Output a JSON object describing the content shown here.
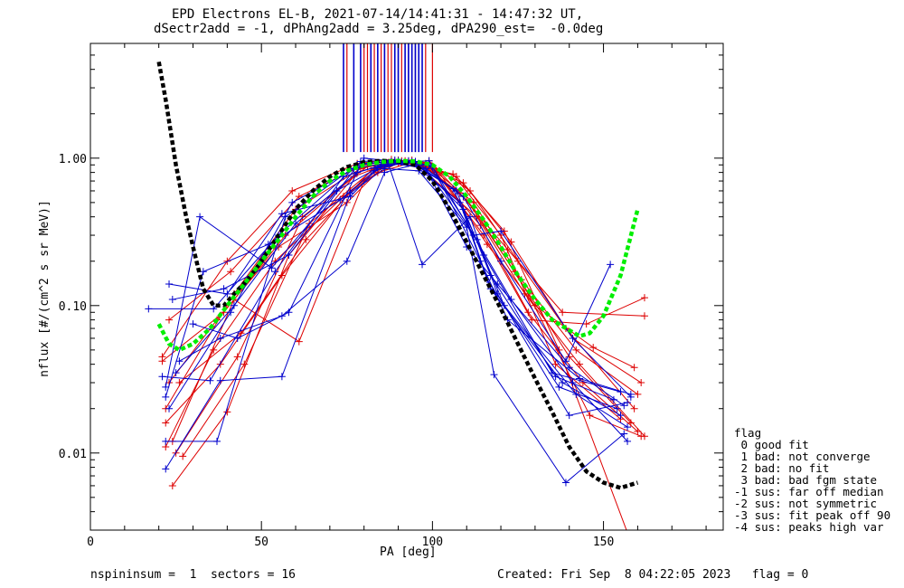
{
  "chart_data": {
    "type": "line",
    "title": "EPD Electrons EL-B, 2021-07-14/14:41:31 - 14:47:32 UT,",
    "subtitle": "dSectr2add = -1, dPhAng2add = 3.25deg, dPA290_est=  -0.0deg",
    "xlabel": "PA [deg]",
    "ylabel": "nflux [#/(cm^2 s sr MeV)]",
    "xlim": [
      0,
      185
    ],
    "ylim": [
      0.003,
      6.0
    ],
    "yscale": "log",
    "x_ticks": [
      0,
      50,
      100,
      150
    ],
    "x_tick_labels": [
      "0",
      "50",
      "100",
      "150"
    ],
    "y_ticks": [
      0.01,
      0.1,
      1.0
    ],
    "y_tick_labels": [
      "0.01",
      "0.10",
      "1.00"
    ],
    "grid": false,
    "colors": {
      "red": "#dd0000",
      "blue": "#0000cc",
      "black": "#000000",
      "green": "#00ee00"
    },
    "vertical_markers": {
      "y_range": [
        1.1,
        6.0
      ],
      "red_x": [
        75,
        80,
        81,
        83,
        85,
        86,
        87,
        88,
        90,
        91,
        93,
        94,
        95,
        98,
        100
      ],
      "blue_x": [
        74,
        77,
        79,
        82,
        84,
        86,
        89,
        90,
        92,
        93,
        94,
        95,
        96,
        97
      ]
    },
    "fit_curves": [
      {
        "color": "black",
        "style": "dashed",
        "x": [
          20,
          22,
          25,
          28,
          30,
          33,
          36,
          39,
          42,
          46,
          50,
          55,
          60,
          65,
          70,
          75,
          80,
          85,
          90,
          95,
          100,
          105,
          110,
          115,
          120,
          125,
          130,
          135,
          140,
          145,
          150,
          155,
          160
        ],
        "y": [
          4.5,
          2.5,
          0.9,
          0.4,
          0.25,
          0.13,
          0.1,
          0.1,
          0.12,
          0.15,
          0.2,
          0.3,
          0.45,
          0.6,
          0.75,
          0.87,
          0.94,
          0.96,
          0.95,
          0.9,
          0.7,
          0.45,
          0.27,
          0.16,
          0.095,
          0.055,
          0.032,
          0.019,
          0.011,
          0.0075,
          0.0063,
          0.0058,
          0.0063
        ]
      },
      {
        "color": "green",
        "style": "dashed",
        "x": [
          20,
          23,
          26,
          30,
          35,
          40,
          45,
          50,
          55,
          60,
          65,
          70,
          75,
          80,
          85,
          90,
          95,
          100,
          105,
          110,
          115,
          120,
          125,
          130,
          135,
          140,
          143,
          146,
          150,
          155,
          160
        ],
        "y": [
          0.075,
          0.055,
          0.05,
          0.055,
          0.07,
          0.1,
          0.14,
          0.2,
          0.28,
          0.4,
          0.55,
          0.7,
          0.82,
          0.9,
          0.94,
          0.96,
          0.95,
          0.9,
          0.75,
          0.55,
          0.38,
          0.25,
          0.16,
          0.11,
          0.08,
          0.068,
          0.062,
          0.065,
          0.085,
          0.16,
          0.45
        ]
      }
    ],
    "series_red": [
      {
        "x": [
          24,
          40,
          58,
          78,
          88,
          97,
          110,
          124,
          140,
          158
        ],
        "y": [
          0.006,
          0.019,
          0.22,
          0.8,
          0.94,
          0.9,
          0.52,
          0.17,
          0.045,
          0.016
        ]
      },
      {
        "x": [
          22,
          42,
          60,
          79,
          89,
          98,
          112,
          126,
          142,
          160
        ],
        "y": [
          0.02,
          0.12,
          0.45,
          0.85,
          0.95,
          0.92,
          0.5,
          0.15,
          0.05,
          0.025
        ]
      },
      {
        "x": [
          23,
          41,
          61,
          80,
          90,
          99,
          111,
          125,
          141,
          161
        ],
        "y": [
          0.08,
          0.17,
          0.55,
          0.9,
          0.97,
          0.93,
          0.6,
          0.2,
          0.06,
          0.03
        ]
      },
      {
        "x": [
          21,
          39,
          57,
          77,
          87,
          96,
          113,
          127,
          143,
          162
        ],
        "y": [
          0.042,
          0.09,
          0.3,
          0.75,
          0.92,
          0.88,
          0.4,
          0.12,
          0.04,
          0.013
        ]
      },
      {
        "x": [
          25,
          43,
          62,
          81,
          91,
          100,
          114,
          128,
          144,
          160
        ],
        "y": [
          0.01,
          0.045,
          0.4,
          0.88,
          0.96,
          0.85,
          0.35,
          0.09,
          0.03,
          0.014
        ]
      },
      {
        "x": [
          22,
          38,
          56,
          76,
          86,
          95,
          109,
          123,
          139,
          159
        ],
        "y": [
          0.016,
          0.04,
          0.16,
          0.6,
          0.9,
          0.95,
          0.68,
          0.27,
          0.07,
          0.02
        ]
      },
      {
        "x": [
          26,
          44,
          63,
          82,
          92,
          101,
          115,
          129,
          145,
          162
        ],
        "y": [
          0.03,
          0.065,
          0.28,
          0.82,
          0.96,
          0.8,
          0.3,
          0.08,
          0.075,
          0.113
        ]
      },
      {
        "x": [
          21,
          40,
          59,
          78,
          88,
          97,
          108,
          122,
          138,
          162
        ],
        "y": [
          0.045,
          0.2,
          0.6,
          0.92,
          0.98,
          0.9,
          0.58,
          0.24,
          0.09,
          0.085
        ]
      },
      {
        "x": [
          24,
          42,
          61,
          80,
          90,
          99,
          112,
          128,
          146,
          161
        ],
        "y": [
          0.012,
          0.11,
          0.057,
          0.7,
          0.93,
          0.96,
          0.46,
          0.12,
          0.018,
          0.013
        ]
      },
      {
        "x": [
          23,
          37,
          55,
          75,
          85,
          94,
          107,
          121,
          137,
          158
        ],
        "y": [
          0.03,
          0.08,
          0.25,
          0.5,
          0.85,
          0.97,
          0.75,
          0.32,
          0.05,
          0.0025
        ]
      },
      {
        "x": [
          22,
          36,
          54,
          74,
          84,
          93,
          106,
          120,
          136,
          155
        ],
        "y": [
          0.011,
          0.05,
          0.2,
          0.55,
          0.8,
          0.92,
          0.78,
          0.3,
          0.04,
          0.017
        ]
      },
      {
        "x": [
          27,
          45,
          64,
          83,
          93,
          102,
          116,
          130,
          147,
          159
        ],
        "y": [
          0.0095,
          0.04,
          0.36,
          0.85,
          0.95,
          0.8,
          0.26,
          0.1,
          0.052,
          0.038
        ]
      }
    ],
    "series_blue": [
      {
        "x": [
          22,
          38,
          56,
          76,
          86,
          96,
          110,
          118,
          139,
          156
        ],
        "y": [
          0.0078,
          0.031,
          0.033,
          0.58,
          0.85,
          0.82,
          0.34,
          0.034,
          0.0063,
          0.0135
        ]
      },
      {
        "x": [
          17,
          36,
          55,
          77,
          87,
          97,
          111,
          119,
          140,
          157
        ],
        "y": [
          0.095,
          0.095,
          0.3,
          0.85,
          0.93,
          0.19,
          0.4,
          0.12,
          0.018,
          0.022
        ]
      },
      {
        "x": [
          22,
          37,
          57,
          78,
          88,
          98,
          112,
          120,
          141,
          158
        ],
        "y": [
          0.012,
          0.012,
          0.4,
          0.9,
          0.95,
          0.85,
          0.3,
          0.32,
          0.06,
          0.024
        ]
      },
      {
        "x": [
          23,
          40,
          56,
          76,
          85,
          95,
          109,
          117,
          138,
          155
        ],
        "y": [
          0.14,
          0.12,
          0.42,
          0.55,
          0.9,
          0.95,
          0.45,
          0.13,
          0.03,
          0.018
        ]
      },
      {
        "x": [
          24,
          39,
          58,
          79,
          89,
          99,
          113,
          121,
          142,
          157
        ],
        "y": [
          0.11,
          0.13,
          0.22,
          0.95,
          0.97,
          0.9,
          0.28,
          0.1,
          0.025,
          0.015
        ]
      },
      {
        "x": [
          21,
          35,
          54,
          74,
          84,
          94,
          108,
          116,
          137,
          154
        ],
        "y": [
          0.033,
          0.031,
          0.17,
          0.75,
          0.88,
          0.93,
          0.5,
          0.15,
          0.028,
          0.02
        ]
      },
      {
        "x": [
          23,
          41,
          59,
          80,
          90,
          100,
          114,
          122,
          143,
          158
        ],
        "y": [
          0.02,
          0.09,
          0.5,
          0.92,
          0.96,
          0.88,
          0.2,
          0.08,
          0.032,
          0.025
        ]
      },
      {
        "x": [
          22,
          33,
          52,
          73,
          83,
          93,
          107,
          117,
          136,
          153
        ],
        "y": [
          0.024,
          0.17,
          0.26,
          0.52,
          0.82,
          0.96,
          0.6,
          0.16,
          0.033,
          0.023
        ]
      },
      {
        "x": [
          25,
          42,
          60,
          78,
          88,
          98,
          110,
          119,
          140,
          156
        ],
        "y": [
          0.035,
          0.1,
          0.36,
          0.8,
          0.93,
          0.85,
          0.25,
          0.14,
          0.038,
          0.021
        ]
      },
      {
        "x": [
          26,
          38,
          56,
          75,
          86,
          96,
          109,
          120,
          139,
          152
        ],
        "y": [
          0.042,
          0.06,
          0.085,
          0.2,
          0.8,
          0.92,
          0.55,
          0.2,
          0.042,
          0.19
        ]
      },
      {
        "x": [
          22,
          32,
          53,
          72,
          84,
          94,
          106,
          115,
          135,
          155
        ],
        "y": [
          0.028,
          0.4,
          0.18,
          0.6,
          0.86,
          0.95,
          0.62,
          0.22,
          0.035,
          0.026
        ]
      },
      {
        "x": [
          30,
          43,
          58,
          80,
          91,
          99,
          112,
          123,
          141,
          157
        ],
        "y": [
          0.075,
          0.06,
          0.09,
          1.0,
          0.94,
          0.96,
          0.3,
          0.11,
          0.03,
          0.012
        ]
      }
    ]
  },
  "legend": {
    "heading": "flag",
    "entries": [
      " 0 good fit",
      " 1 bad: not converge",
      " 2 bad: no fit",
      " 3 bad: bad fgm state",
      "-1 sus: far off median",
      "-2 sus: not symmetric",
      "-3 sus: fit peak off 90",
      "-4 sus: peaks high var"
    ]
  },
  "footer": {
    "left": "nspininsum =  1  sectors = 16",
    "right": "Created: Fri Sep  8 04:22:05 2023   flag = 0"
  }
}
